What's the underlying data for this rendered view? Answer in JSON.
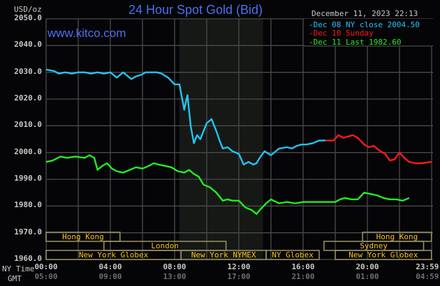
{
  "header": {
    "title": "24 Hour Spot Gold (Bid)",
    "site": "www.kitco.com",
    "unit": "USD/oz",
    "datetime": "December 11, 2023 22:13"
  },
  "legend": [
    {
      "label": "Dec 08 NY close 2004.50",
      "color": "#22c4f5"
    },
    {
      "label": "Dec 10 Sunday",
      "color": "#ff1a1a"
    },
    {
      "label": "Dec 11 Last 1982.60",
      "color": "#22ee22"
    }
  ],
  "axis": {
    "y_ticks": [
      "2050.0",
      "2040.0",
      "2030.0",
      "2020.0",
      "2010.0",
      "2000.0",
      "1990.0",
      "1980.0",
      "1970.0",
      "1960.0"
    ],
    "ny_time_label": "NY Time",
    "gmt_label": "GMT",
    "ny_ticks": [
      "00:00",
      "04:00",
      "08:00",
      "12:00",
      "16:00",
      "20:00",
      "23:59"
    ],
    "gmt_ticks": [
      "05:00",
      "09:00",
      "13:00",
      "17:00",
      "21:00",
      "01:00",
      "04:59"
    ]
  },
  "sessions": [
    {
      "label": "Hong Kong",
      "row": 0,
      "start": 0,
      "end": 4.6
    },
    {
      "label": "London",
      "row": 1,
      "start": 3.6,
      "end": 11.2
    },
    {
      "label": "New York Globex",
      "row": 2,
      "start": 0,
      "end": 8.4
    },
    {
      "label": "New York NYMEX",
      "row": 2,
      "start": 8.4,
      "end": 13.7
    },
    {
      "label": "NY Globex",
      "row": 2,
      "start": 13.7,
      "end": 17.0
    },
    {
      "label": "Sydney",
      "row": 1,
      "start": 17.3,
      "end": 23.5
    },
    {
      "label": "New York Globex",
      "row": 2,
      "start": 18.0,
      "end": 23.99
    },
    {
      "label": "Hong Kong",
      "row": 0,
      "start": 19.7,
      "end": 23.99
    }
  ],
  "chart_data": {
    "type": "line",
    "title": "24 Hour Spot Gold (Bid)",
    "xlabel": "NY Time (hours)",
    "ylabel": "USD/oz",
    "ylim": [
      1960,
      2050
    ],
    "xlim": [
      0,
      24
    ],
    "grid": true,
    "shaded_region_hours": [
      8.3,
      13.5
    ],
    "series": [
      {
        "name": "Dec 08 NY close 2004.50",
        "color": "#22c4f5",
        "x": [
          0,
          0.5,
          0.8,
          1.2,
          1.6,
          2.0,
          2.4,
          2.8,
          3.2,
          3.6,
          4.0,
          4.4,
          4.8,
          5.0,
          5.3,
          5.6,
          5.9,
          6.2,
          6.6,
          6.9,
          7.2,
          7.6,
          8.0,
          8.3,
          8.6,
          8.8,
          9.0,
          9.2,
          9.4,
          9.6,
          9.8,
          10.0,
          10.3,
          10.6,
          10.8,
          11.0,
          11.3,
          11.6,
          12.0,
          12.3,
          12.6,
          12.9,
          13.1,
          13.3,
          13.6,
          14.0,
          14.5,
          15.0,
          15.3,
          15.6,
          15.9,
          16.2,
          16.6,
          17.0,
          17.4
        ],
        "y": [
          2031,
          2030.5,
          2029.5,
          2030,
          2029.5,
          2030,
          2030,
          2029.5,
          2030,
          2029.5,
          2030,
          2028,
          2030,
          2029,
          2027.5,
          2028.5,
          2029,
          2030,
          2030,
          2030,
          2029.5,
          2028,
          2025.5,
          2025.5,
          2016,
          2021.5,
          2010,
          2003.5,
          2006.5,
          2005,
          2008,
          2011,
          2012.5,
          2008,
          2004.5,
          2001.5,
          2002,
          2000.5,
          1999.5,
          1995.5,
          1996.5,
          1995.5,
          1996,
          1998,
          2000.5,
          1999,
          2001.5,
          2002,
          2001.5,
          2002.5,
          2003,
          2003,
          2003.5,
          2004.5,
          2004.5
        ]
      },
      {
        "name": "Dec 10 Sunday",
        "color": "#ff1a1a",
        "x": [
          17.4,
          17.9,
          18.2,
          18.5,
          18.8,
          19.1,
          19.4,
          19.8,
          20.1,
          20.4,
          20.8,
          21.1,
          21.4,
          21.7,
          22.0,
          22.3,
          22.6,
          23.0,
          23.4,
          23.99
        ],
        "y": [
          2004.5,
          2004.5,
          2006.5,
          2005.5,
          2006,
          2006.5,
          2005.5,
          2003,
          2002,
          2002.5,
          2000.5,
          1999.5,
          1997,
          1997.5,
          2000,
          1998,
          1996.5,
          1996,
          1996,
          1996.5
        ]
      },
      {
        "name": "Dec 11 Last 1982.60",
        "color": "#22ee22",
        "x": [
          0,
          0.4,
          0.9,
          1.3,
          1.8,
          2.4,
          2.7,
          3.0,
          3.2,
          3.5,
          3.8,
          4.1,
          4.4,
          4.8,
          5.2,
          5.6,
          6.0,
          6.4,
          6.7,
          7.0,
          7.4,
          7.8,
          8.2,
          8.6,
          8.9,
          9.2,
          9.5,
          9.8,
          10.2,
          10.6,
          11.0,
          11.3,
          11.6,
          12.0,
          12.4,
          12.8,
          13.1,
          13.3,
          13.7,
          14.0,
          14.5,
          15.0,
          15.5,
          16.0,
          16.5,
          17.0,
          17.5,
          18.0,
          18.3,
          18.6,
          19.0,
          19.4,
          19.8,
          20.2,
          20.6,
          21.0,
          21.4,
          21.8,
          22.2,
          22.6
        ],
        "y": [
          1996.5,
          1997,
          1998.5,
          1998,
          1998.5,
          1998,
          1999,
          1998,
          1993.5,
          1995,
          1996,
          1994,
          1993,
          1992.5,
          1993.5,
          1994.5,
          1994,
          1995,
          1996,
          1995.5,
          1995,
          1994.5,
          1993,
          1992.5,
          1993.5,
          1992,
          1991,
          1988,
          1987,
          1985,
          1982,
          1982.5,
          1982,
          1982,
          1979.5,
          1978.5,
          1977,
          1978.5,
          1981,
          1982.5,
          1981,
          1981.5,
          1981,
          1981.5,
          1981.5,
          1981.5,
          1981.5,
          1981.5,
          1982.5,
          1983,
          1982.5,
          1982.5,
          1985,
          1984.5,
          1984,
          1983,
          1982.5,
          1982.5,
          1982,
          1983
        ]
      }
    ]
  }
}
